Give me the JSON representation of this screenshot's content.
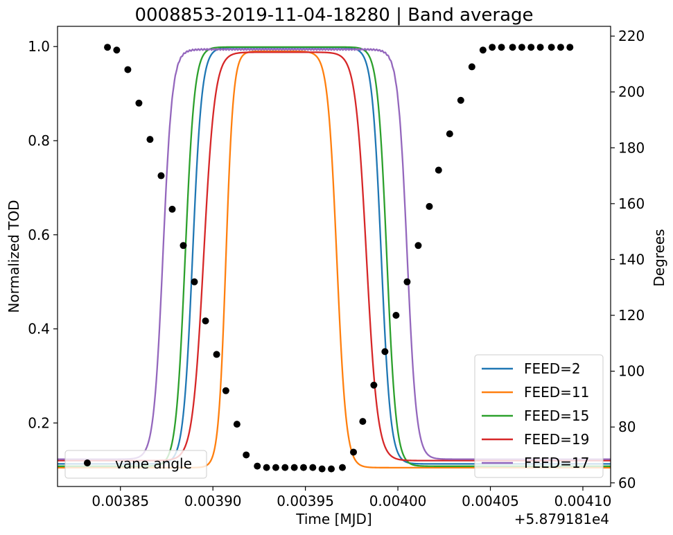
{
  "chart_data": {
    "type": "line",
    "title": "0008853-2019-11-04-18280 | Band average",
    "xlabel": "Time [MJD]",
    "ylabel": "Normalized TOD",
    "y2label": "Degrees",
    "x_offset_text": "+5.879181e4",
    "xlim": [
      0.003816,
      0.004115
    ],
    "ylim": [
      0.065,
      1.043
    ],
    "y2lim": [
      58.7,
      223.5
    ],
    "xticks": [
      0.00385,
      0.0039,
      0.00395,
      0.004,
      0.00405,
      0.0041
    ],
    "xtick_labels": [
      "0.00385",
      "0.00390",
      "0.00395",
      "0.00400",
      "0.00405",
      "0.00410"
    ],
    "yticks": [
      0.2,
      0.4,
      0.6,
      0.8,
      1.0
    ],
    "ytick_labels": [
      "0.2",
      "0.4",
      "0.6",
      "0.8",
      "1.0"
    ],
    "y2ticks": [
      60,
      80,
      100,
      120,
      140,
      160,
      180,
      200,
      220
    ],
    "y2tick_labels": [
      "60",
      "80",
      "100",
      "120",
      "140",
      "160",
      "180",
      "200",
      "220"
    ],
    "grid": false,
    "series": [
      {
        "name": "FEED=2",
        "color": "#1f77b4",
        "axis": "left",
        "low": 0.113,
        "high": 0.998,
        "rise": [
          0.003889,
          2.5e-06
        ],
        "fall": [
          0.003991,
          2.5e-06
        ]
      },
      {
        "name": "FEED=11",
        "color": "#ff7f0e",
        "axis": "left",
        "low": 0.105,
        "high": 0.99,
        "rise": [
          0.003907,
          2e-06
        ],
        "fall": [
          0.003967,
          2.5e-06
        ]
      },
      {
        "name": "FEED=15",
        "color": "#2ca02c",
        "axis": "left",
        "low": 0.108,
        "high": 0.999,
        "rise": [
          0.003885,
          2.5e-06
        ],
        "fall": [
          0.003994,
          2.5e-06
        ]
      },
      {
        "name": "FEED=19",
        "color": "#d62728",
        "axis": "left",
        "low": 0.12,
        "high": 0.988,
        "rise": [
          0.003895,
          3e-06
        ],
        "fall": [
          0.003983,
          3e-06
        ]
      },
      {
        "name": "FEED=17",
        "color": "#9467bd",
        "axis": "left",
        "low": 0.123,
        "high": 0.994,
        "rise": [
          0.003873,
          2.5e-06
        ],
        "fall": [
          0.004005,
          2.5e-06
        ]
      }
    ],
    "scatter": {
      "name": "vane angle",
      "color": "#000000",
      "axis": "right",
      "points": [
        [
          0.003843,
          216.0
        ],
        [
          0.003848,
          215.0
        ],
        [
          0.003854,
          208.0
        ],
        [
          0.00386,
          196.0
        ],
        [
          0.003866,
          183.0
        ],
        [
          0.003872,
          170.0
        ],
        [
          0.003878,
          158.0
        ],
        [
          0.003884,
          145.0
        ],
        [
          0.00389,
          132.0
        ],
        [
          0.003896,
          118.0
        ],
        [
          0.003902,
          106.0
        ],
        [
          0.003907,
          93.0
        ],
        [
          0.003913,
          81.0
        ],
        [
          0.003918,
          70.0
        ],
        [
          0.003924,
          66.0
        ],
        [
          0.003929,
          65.5
        ],
        [
          0.003934,
          65.5
        ],
        [
          0.003939,
          65.5
        ],
        [
          0.003944,
          65.5
        ],
        [
          0.003949,
          65.5
        ],
        [
          0.003954,
          65.5
        ],
        [
          0.003959,
          65.0
        ],
        [
          0.003964,
          65.0
        ],
        [
          0.00397,
          65.5
        ],
        [
          0.003976,
          71.0
        ],
        [
          0.003981,
          82.0
        ],
        [
          0.003987,
          95.0
        ],
        [
          0.003993,
          107.0
        ],
        [
          0.003999,
          120.0
        ],
        [
          0.004005,
          132.0
        ],
        [
          0.004011,
          145.0
        ],
        [
          0.004017,
          159.0
        ],
        [
          0.004022,
          172.0
        ],
        [
          0.004028,
          185.0
        ],
        [
          0.004034,
          197.0
        ],
        [
          0.00404,
          209.0
        ],
        [
          0.004046,
          215.0
        ],
        [
          0.004051,
          216.0
        ],
        [
          0.004056,
          216.0
        ],
        [
          0.004062,
          216.0
        ],
        [
          0.004067,
          216.0
        ],
        [
          0.004072,
          216.0
        ],
        [
          0.004077,
          216.0
        ],
        [
          0.004083,
          216.0
        ],
        [
          0.004088,
          216.0
        ],
        [
          0.004093,
          216.0
        ]
      ]
    },
    "legends": [
      {
        "placement": "lower-right",
        "entries": [
          "FEED=2",
          "FEED=11",
          "FEED=15",
          "FEED=19",
          "FEED=17"
        ]
      },
      {
        "placement": "lower-left",
        "entries": [
          "vane angle"
        ]
      }
    ]
  }
}
